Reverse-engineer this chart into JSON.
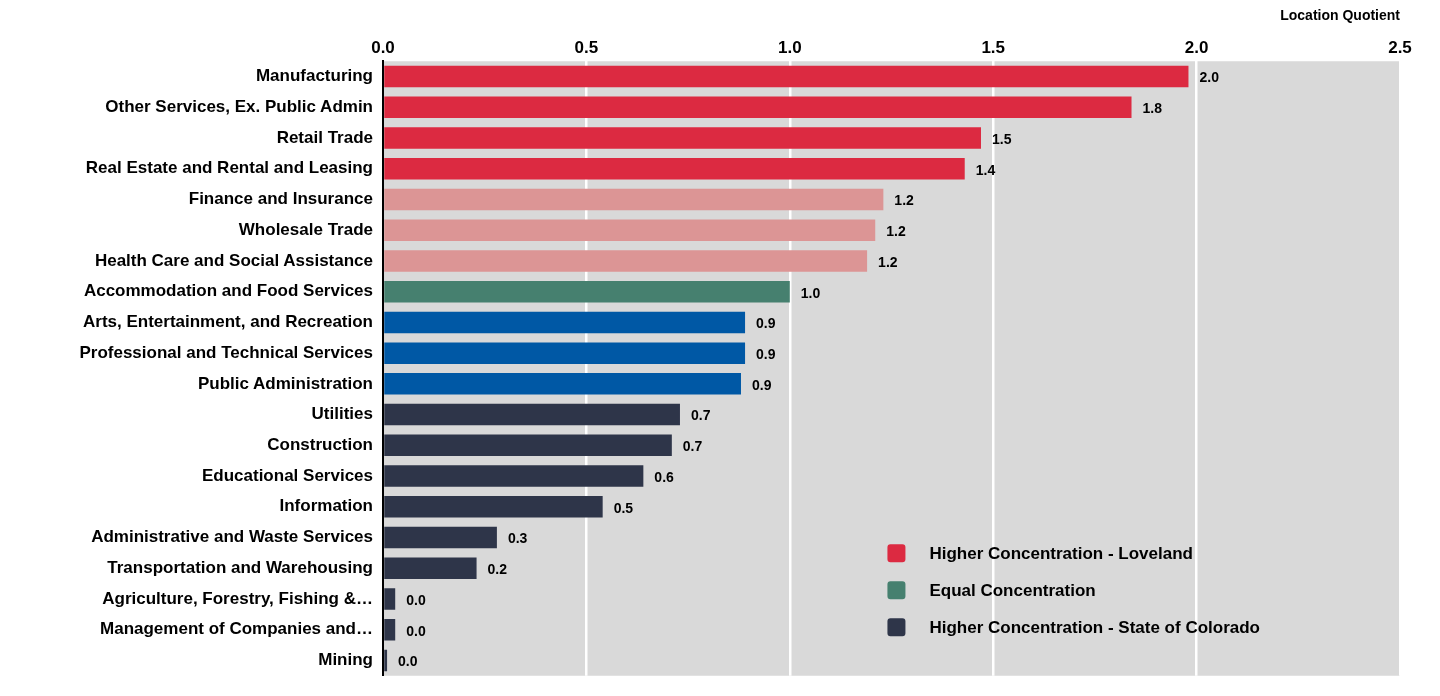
{
  "chart_data": {
    "type": "bar",
    "orientation": "horizontal",
    "xlabel": "Location Quotient",
    "categories": [
      "Manufacturing",
      "Other Services, Ex. Public Admin",
      "Retail Trade",
      "Real Estate and Rental and Leasing",
      "Finance and Insurance",
      "Wholesale Trade",
      "Health Care and Social Assistance",
      "Accommodation and Food Services",
      "Arts, Entertainment, and Recreation",
      "Professional and Technical Services",
      "Public Administration",
      "Utilities",
      "Construction",
      "Educational Services",
      "Information",
      "Administrative and Waste Services",
      "Transportation and Warehousing",
      "Agriculture, Forestry, Fishing &…",
      "Management of Companies and…",
      "Mining"
    ],
    "series": [
      {
        "name": "Higher Concentration - Loveland",
        "color": "#dc2a41",
        "values": [
          1.98,
          1.84,
          1.47,
          1.43,
          null,
          null,
          null,
          null,
          null,
          null,
          null,
          null,
          null,
          null,
          null,
          null,
          null,
          null,
          null,
          null
        ]
      },
      {
        "color": "#dc9595",
        "values": [
          null,
          null,
          null,
          null,
          1.23,
          1.21,
          1.19,
          null,
          null,
          null,
          null,
          null,
          null,
          null,
          null,
          null,
          null,
          null,
          null,
          null
        ]
      },
      {
        "name": "Equal Concentration",
        "color": "#46806f",
        "values": [
          null,
          null,
          null,
          null,
          null,
          null,
          null,
          1.0,
          null,
          null,
          null,
          null,
          null,
          null,
          null,
          null,
          null,
          null,
          null,
          null
        ]
      },
      {
        "color": "#0058a5",
        "values": [
          null,
          null,
          null,
          null,
          null,
          null,
          null,
          null,
          0.89,
          0.89,
          0.88,
          null,
          null,
          null,
          null,
          null,
          null,
          null,
          null,
          null
        ]
      },
      {
        "name": "Higher Concentration - State of Colorado",
        "color": "#2e3549",
        "values": [
          null,
          null,
          null,
          null,
          null,
          null,
          null,
          null,
          null,
          null,
          null,
          0.73,
          0.71,
          0.64,
          0.54,
          0.28,
          0.23,
          0.03,
          0.03,
          0.01
        ]
      }
    ],
    "value_labels": [
      "2.0",
      "1.8",
      "1.5",
      "1.4",
      "1.2",
      "1.2",
      "1.2",
      "1.0",
      "0.9",
      "0.9",
      "0.9",
      "0.7",
      "0.7",
      "0.6",
      "0.5",
      "0.3",
      "0.2",
      "0.0",
      "0.0",
      "0.0"
    ],
    "xlim": [
      0,
      2.5
    ],
    "xticks": [
      {
        "value": 0,
        "label": "0.0"
      },
      {
        "value": 0.5,
        "label": "0.5"
      },
      {
        "value": 1,
        "label": "1.0"
      },
      {
        "value": 1.5,
        "label": "1.5"
      },
      {
        "value": 2,
        "label": "2.0"
      },
      {
        "value": 2.5,
        "label": "2.5"
      }
    ],
    "grid": "x",
    "legend": "bottom right"
  }
}
